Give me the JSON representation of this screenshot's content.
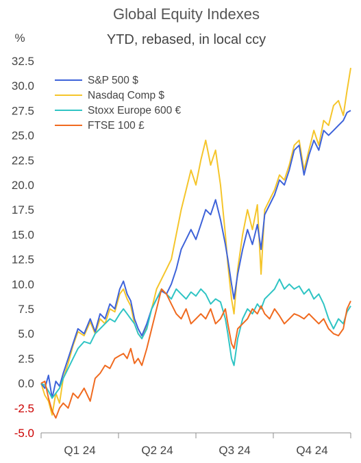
{
  "chart_data": {
    "type": "line",
    "title": "Global Equity Indexes",
    "subtitle": "YTD, rebased, in local ccy",
    "ylabel": "%",
    "ylim": [
      -5.0,
      32.5
    ],
    "yticks": [
      "32.5",
      "30.0",
      "27.5",
      "25.0",
      "22.5",
      "20.0",
      "17.5",
      "15.0",
      "12.5",
      "10.0",
      "7.5",
      "5.0",
      "2.5",
      "0.0",
      "-2.5",
      "-5.0"
    ],
    "ytick_values": [
      32.5,
      30.0,
      27.5,
      25.0,
      22.5,
      20.0,
      17.5,
      15.0,
      12.5,
      10.0,
      7.5,
      5.0,
      2.5,
      0.0,
      -2.5,
      -5.0
    ],
    "negative_tick_color": "#cc0000",
    "xlim": [
      0,
      252
    ],
    "xtick_positions": [
      0,
      63,
      126,
      189,
      252
    ],
    "xcategory_labels": [
      "Q1 24",
      "Q2 24",
      "Q3 24",
      "Q4 24"
    ],
    "grid": false,
    "legend_position": "top-left",
    "series": [
      {
        "name": "S&P 500 $",
        "color": "#3d62d9",
        "points": [
          [
            0,
            0
          ],
          [
            3,
            -0.5
          ],
          [
            6,
            0.8
          ],
          [
            9,
            -1.5
          ],
          [
            12,
            0.2
          ],
          [
            15,
            -0.3
          ],
          [
            18,
            1.0
          ],
          [
            22,
            2.5
          ],
          [
            26,
            4.0
          ],
          [
            30,
            5.5
          ],
          [
            35,
            5.0
          ],
          [
            40,
            6.5
          ],
          [
            44,
            5.2
          ],
          [
            48,
            7.0
          ],
          [
            52,
            6.5
          ],
          [
            56,
            8.0
          ],
          [
            60,
            7.5
          ],
          [
            64,
            9.5
          ],
          [
            67,
            10.3
          ],
          [
            70,
            9.0
          ],
          [
            73,
            8.3
          ],
          [
            76,
            6.5
          ],
          [
            79,
            5.5
          ],
          [
            82,
            4.8
          ],
          [
            86,
            6.0
          ],
          [
            90,
            7.5
          ],
          [
            94,
            8.5
          ],
          [
            98,
            9.3
          ],
          [
            102,
            9.0
          ],
          [
            106,
            10.0
          ],
          [
            110,
            11.5
          ],
          [
            114,
            13.5
          ],
          [
            118,
            14.5
          ],
          [
            122,
            15.5
          ],
          [
            126,
            14.5
          ],
          [
            130,
            16.0
          ],
          [
            134,
            17.5
          ],
          [
            138,
            17.0
          ],
          [
            142,
            18.5
          ],
          [
            146,
            16.5
          ],
          [
            150,
            14.0
          ],
          [
            152,
            12.5
          ],
          [
            155,
            10.0
          ],
          [
            157,
            8.5
          ],
          [
            160,
            11.0
          ],
          [
            164,
            13.5
          ],
          [
            168,
            15.5
          ],
          [
            172,
            14.0
          ],
          [
            176,
            16.0
          ],
          [
            179,
            13.5
          ],
          [
            182,
            17.0
          ],
          [
            186,
            18.0
          ],
          [
            190,
            19.0
          ],
          [
            194,
            20.5
          ],
          [
            198,
            20.0
          ],
          [
            202,
            21.5
          ],
          [
            206,
            23.5
          ],
          [
            210,
            24.0
          ],
          [
            214,
            21.0
          ],
          [
            218,
            23.0
          ],
          [
            222,
            24.5
          ],
          [
            226,
            23.5
          ],
          [
            230,
            25.5
          ],
          [
            234,
            25.0
          ],
          [
            238,
            25.5
          ],
          [
            242,
            26.0
          ],
          [
            246,
            26.5
          ],
          [
            249,
            27.3
          ],
          [
            252,
            27.5
          ]
        ]
      },
      {
        "name": "Nasdaq Comp $",
        "color": "#f5c52a",
        "points": [
          [
            0,
            0
          ],
          [
            3,
            -1.2
          ],
          [
            6,
            -1.8
          ],
          [
            9,
            -3.2
          ],
          [
            12,
            -1.0
          ],
          [
            15,
            -2.0
          ],
          [
            18,
            0.5
          ],
          [
            22,
            2.0
          ],
          [
            26,
            3.8
          ],
          [
            30,
            5.2
          ],
          [
            35,
            4.8
          ],
          [
            40,
            6.2
          ],
          [
            44,
            5.0
          ],
          [
            48,
            6.5
          ],
          [
            52,
            6.0
          ],
          [
            56,
            7.5
          ],
          [
            60,
            7.2
          ],
          [
            64,
            9.0
          ],
          [
            67,
            9.5
          ],
          [
            70,
            8.5
          ],
          [
            73,
            7.8
          ],
          [
            76,
            6.0
          ],
          [
            79,
            5.0
          ],
          [
            82,
            4.5
          ],
          [
            86,
            5.8
          ],
          [
            90,
            7.5
          ],
          [
            94,
            9.5
          ],
          [
            98,
            10.5
          ],
          [
            102,
            11.5
          ],
          [
            106,
            12.5
          ],
          [
            110,
            15.0
          ],
          [
            114,
            17.5
          ],
          [
            118,
            19.5
          ],
          [
            122,
            21.5
          ],
          [
            126,
            20.0
          ],
          [
            130,
            22.5
          ],
          [
            134,
            24.5
          ],
          [
            138,
            22.0
          ],
          [
            142,
            23.5
          ],
          [
            146,
            20.0
          ],
          [
            150,
            15.0
          ],
          [
            152,
            12.0
          ],
          [
            155,
            8.5
          ],
          [
            157,
            7.0
          ],
          [
            160,
            11.5
          ],
          [
            164,
            15.0
          ],
          [
            168,
            17.5
          ],
          [
            172,
            15.5
          ],
          [
            176,
            18.0
          ],
          [
            179,
            11.0
          ],
          [
            182,
            17.5
          ],
          [
            186,
            18.5
          ],
          [
            190,
            19.5
          ],
          [
            194,
            21.0
          ],
          [
            198,
            20.5
          ],
          [
            202,
            22.0
          ],
          [
            206,
            24.0
          ],
          [
            210,
            24.5
          ],
          [
            214,
            21.5
          ],
          [
            218,
            23.5
          ],
          [
            222,
            25.5
          ],
          [
            226,
            24.0
          ],
          [
            230,
            26.5
          ],
          [
            234,
            26.0
          ],
          [
            238,
            28.0
          ],
          [
            242,
            28.5
          ],
          [
            246,
            27.0
          ],
          [
            249,
            29.5
          ],
          [
            252,
            31.8
          ]
        ]
      },
      {
        "name": "Stoxx Europe 600 €",
        "color": "#2fc4c4",
        "points": [
          [
            0,
            0
          ],
          [
            3,
            -0.2
          ],
          [
            6,
            -0.8
          ],
          [
            9,
            -1.5
          ],
          [
            12,
            -1.0
          ],
          [
            15,
            -0.5
          ],
          [
            18,
            0.5
          ],
          [
            22,
            1.5
          ],
          [
            26,
            2.5
          ],
          [
            30,
            3.5
          ],
          [
            35,
            4.2
          ],
          [
            40,
            4.0
          ],
          [
            44,
            5.0
          ],
          [
            48,
            5.5
          ],
          [
            52,
            6.0
          ],
          [
            56,
            6.5
          ],
          [
            60,
            6.2
          ],
          [
            64,
            7.0
          ],
          [
            67,
            7.5
          ],
          [
            70,
            7.0
          ],
          [
            73,
            6.5
          ],
          [
            76,
            6.0
          ],
          [
            79,
            5.0
          ],
          [
            82,
            4.5
          ],
          [
            86,
            5.5
          ],
          [
            90,
            7.5
          ],
          [
            94,
            8.5
          ],
          [
            98,
            9.5
          ],
          [
            102,
            9.0
          ],
          [
            106,
            8.5
          ],
          [
            110,
            9.5
          ],
          [
            114,
            9.0
          ],
          [
            118,
            8.5
          ],
          [
            122,
            9.2
          ],
          [
            126,
            8.8
          ],
          [
            130,
            9.5
          ],
          [
            134,
            9.0
          ],
          [
            138,
            8.0
          ],
          [
            142,
            8.5
          ],
          [
            146,
            8.2
          ],
          [
            150,
            6.5
          ],
          [
            152,
            5.0
          ],
          [
            155,
            2.5
          ],
          [
            157,
            1.8
          ],
          [
            160,
            4.5
          ],
          [
            164,
            6.5
          ],
          [
            168,
            7.5
          ],
          [
            172,
            7.0
          ],
          [
            176,
            8.0
          ],
          [
            179,
            7.5
          ],
          [
            182,
            8.5
          ],
          [
            186,
            9.0
          ],
          [
            190,
            9.5
          ],
          [
            194,
            10.5
          ],
          [
            198,
            9.5
          ],
          [
            202,
            10.0
          ],
          [
            206,
            9.5
          ],
          [
            210,
            9.8
          ],
          [
            214,
            9.0
          ],
          [
            218,
            9.5
          ],
          [
            222,
            8.5
          ],
          [
            226,
            9.0
          ],
          [
            230,
            8.0
          ],
          [
            234,
            6.5
          ],
          [
            238,
            5.5
          ],
          [
            242,
            6.5
          ],
          [
            246,
            6.0
          ],
          [
            249,
            7.2
          ],
          [
            252,
            7.8
          ]
        ]
      },
      {
        "name": "FTSE 100 £",
        "color": "#f06a1f",
        "points": [
          [
            0,
            0
          ],
          [
            3,
            0.2
          ],
          [
            6,
            -1.5
          ],
          [
            9,
            -2.8
          ],
          [
            12,
            -3.5
          ],
          [
            15,
            -2.5
          ],
          [
            18,
            -2.0
          ],
          [
            22,
            -2.5
          ],
          [
            26,
            -1.0
          ],
          [
            30,
            -1.5
          ],
          [
            35,
            -0.5
          ],
          [
            40,
            -1.8
          ],
          [
            44,
            0.5
          ],
          [
            48,
            1.0
          ],
          [
            52,
            1.8
          ],
          [
            56,
            1.5
          ],
          [
            60,
            2.5
          ],
          [
            64,
            2.8
          ],
          [
            67,
            3.0
          ],
          [
            70,
            2.5
          ],
          [
            73,
            3.5
          ],
          [
            76,
            2.0
          ],
          [
            79,
            2.5
          ],
          [
            82,
            1.8
          ],
          [
            86,
            3.5
          ],
          [
            90,
            5.5
          ],
          [
            94,
            7.5
          ],
          [
            98,
            9.5
          ],
          [
            102,
            9.0
          ],
          [
            106,
            8.0
          ],
          [
            110,
            7.0
          ],
          [
            114,
            6.5
          ],
          [
            118,
            7.5
          ],
          [
            122,
            6.0
          ],
          [
            126,
            6.5
          ],
          [
            130,
            7.0
          ],
          [
            134,
            6.5
          ],
          [
            138,
            7.5
          ],
          [
            142,
            6.0
          ],
          [
            146,
            6.5
          ],
          [
            150,
            7.5
          ],
          [
            152,
            6.0
          ],
          [
            155,
            4.0
          ],
          [
            157,
            3.5
          ],
          [
            160,
            5.5
          ],
          [
            164,
            6.0
          ],
          [
            168,
            6.5
          ],
          [
            172,
            7.5
          ],
          [
            176,
            7.0
          ],
          [
            179,
            7.8
          ],
          [
            182,
            7.0
          ],
          [
            186,
            6.5
          ],
          [
            190,
            7.5
          ],
          [
            194,
            6.8
          ],
          [
            198,
            6.0
          ],
          [
            202,
            6.5
          ],
          [
            206,
            7.0
          ],
          [
            210,
            6.8
          ],
          [
            214,
            6.5
          ],
          [
            218,
            7.0
          ],
          [
            222,
            6.5
          ],
          [
            226,
            6.0
          ],
          [
            230,
            6.5
          ],
          [
            234,
            5.5
          ],
          [
            238,
            5.0
          ],
          [
            242,
            4.8
          ],
          [
            246,
            5.5
          ],
          [
            249,
            7.5
          ],
          [
            252,
            8.3
          ]
        ]
      }
    ]
  }
}
